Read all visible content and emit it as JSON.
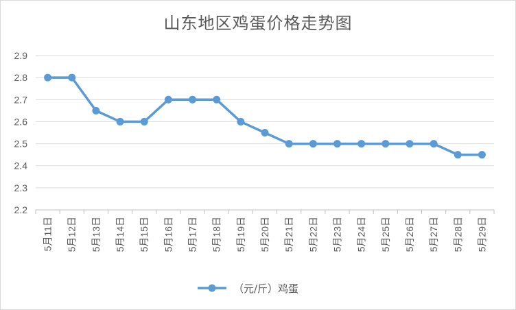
{
  "chart_data": {
    "type": "line",
    "title": "山东地区鸡蛋价格走势图",
    "xlabel": "",
    "ylabel": "",
    "categories": [
      "5月11日",
      "5月12日",
      "5月13日",
      "5月14日",
      "5月15日",
      "5月16日",
      "5月17日",
      "5月18日",
      "5月19日",
      "5月20日",
      "5月21日",
      "5月22日",
      "5月23日",
      "5月24日",
      "5月25日",
      "5月26日",
      "5月27日",
      "5月28日",
      "5月29日"
    ],
    "series": [
      {
        "name": "（元/斤）鸡蛋",
        "values": [
          2.8,
          2.8,
          2.65,
          2.6,
          2.6,
          2.7,
          2.7,
          2.7,
          2.6,
          2.55,
          2.5,
          2.5,
          2.5,
          2.5,
          2.5,
          2.5,
          2.5,
          2.45,
          2.45
        ],
        "color": "#5b9bd5"
      }
    ],
    "ylim": [
      2.2,
      2.9
    ],
    "yticks": [
      "2.2",
      "2.3",
      "2.4",
      "2.5",
      "2.6",
      "2.7",
      "2.8",
      "2.9"
    ],
    "grid": true,
    "legend": "bottom"
  }
}
